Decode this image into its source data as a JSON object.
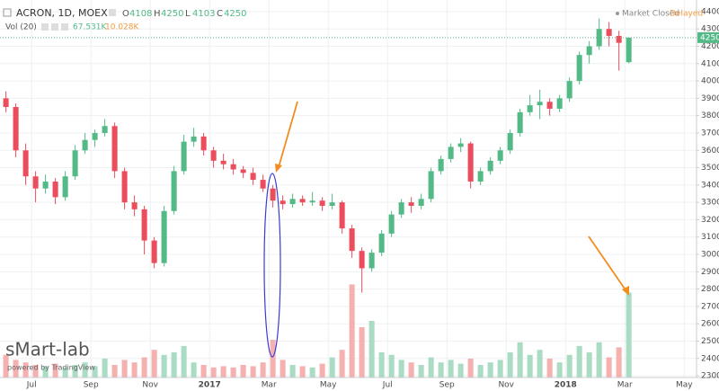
{
  "chart_data": {
    "type": "candlestick",
    "symbol": "ACRON, 1D, MOEX",
    "ohlc_letters": [
      "O",
      "H",
      "L",
      "C"
    ],
    "volume_title": "Vol (20)",
    "volume_ma_label": "10.028K",
    "status": "Market Closed",
    "delay": "Delayed",
    "watermark": "sMart-lab",
    "powered_by": "powered by TradingView",
    "up_color": "#53b987",
    "down_color": "#eb4d5c",
    "volume_up_color": "#a9dcc3",
    "volume_down_color": "#f5b0b0",
    "open": [
      3900,
      3850,
      3600,
      3450,
      3380,
      3420,
      3330,
      3450,
      3600,
      3660,
      3700,
      3740,
      3480,
      3300,
      3260,
      3080,
      2950,
      3250,
      3480,
      3650,
      3680,
      3600,
      3540,
      3520,
      3490,
      3470,
      3430,
      3380,
      3310,
      3290,
      3320,
      3300,
      3310,
      3280,
      3300,
      3150,
      3020,
      2920,
      3010,
      3120,
      3230,
      3300,
      3280,
      3320,
      3480,
      3550,
      3620,
      3640,
      3420,
      3480,
      3540,
      3600,
      3700,
      3820,
      3860,
      3880,
      3840,
      3900,
      4000,
      4150,
      4200,
      4300,
      4260,
      4108
    ],
    "high": [
      3940,
      3870,
      3640,
      3480,
      3460,
      3440,
      3480,
      3630,
      3700,
      3720,
      3780,
      3760,
      3500,
      3340,
      3280,
      3100,
      3280,
      3510,
      3690,
      3730,
      3700,
      3620,
      3580,
      3550,
      3510,
      3500,
      3460,
      3400,
      3340,
      3350,
      3340,
      3360,
      3330,
      3350,
      3310,
      3170,
      3040,
      3030,
      3140,
      3250,
      3320,
      3330,
      3350,
      3500,
      3570,
      3640,
      3670,
      3650,
      3500,
      3560,
      3620,
      3720,
      3840,
      3920,
      3950,
      3900,
      3920,
      4020,
      4170,
      4230,
      4360,
      4340,
      4290,
      4250
    ],
    "low": [
      3820,
      3560,
      3400,
      3300,
      3350,
      3290,
      3310,
      3430,
      3580,
      3620,
      3680,
      3440,
      3260,
      3220,
      3000,
      2920,
      2930,
      3230,
      3460,
      3620,
      3570,
      3500,
      3490,
      3460,
      3440,
      3400,
      3360,
      3270,
      3260,
      3270,
      3280,
      3280,
      3250,
      3260,
      3120,
      2980,
      2780,
      2900,
      2990,
      3100,
      3210,
      3240,
      3260,
      3300,
      3460,
      3530,
      3590,
      3380,
      3400,
      3460,
      3520,
      3580,
      3680,
      3800,
      3780,
      3800,
      3820,
      3880,
      3980,
      4100,
      4180,
      4200,
      4060,
      4103
    ],
    "close": [
      3850,
      3600,
      3450,
      3380,
      3420,
      3330,
      3450,
      3600,
      3660,
      3700,
      3740,
      3480,
      3300,
      3260,
      3080,
      2950,
      3250,
      3480,
      3650,
      3680,
      3600,
      3540,
      3520,
      3490,
      3470,
      3430,
      3380,
      3310,
      3290,
      3320,
      3300,
      3310,
      3280,
      3300,
      3150,
      3020,
      2920,
      3010,
      3120,
      3230,
      3300,
      3280,
      3320,
      3480,
      3550,
      3620,
      3640,
      3420,
      3480,
      3540,
      3600,
      3700,
      3820,
      3860,
      3880,
      3840,
      3900,
      4000,
      4150,
      4200,
      4300,
      4260,
      4220,
      4250
    ],
    "volume": [
      18,
      14,
      12,
      10,
      9,
      11,
      8,
      10,
      12,
      9,
      15,
      10,
      14,
      12,
      16,
      22,
      18,
      20,
      25,
      12,
      10,
      8,
      9,
      8,
      10,
      9,
      12,
      30,
      14,
      10,
      9,
      8,
      11,
      16,
      22,
      74,
      40,
      45,
      20,
      18,
      14,
      12,
      10,
      16,
      12,
      14,
      11,
      15,
      10,
      12,
      14,
      20,
      28,
      18,
      22,
      15,
      12,
      18,
      25,
      20,
      28,
      16,
      24,
      67.531
    ],
    "volume_value_labels": [
      null,
      null,
      null,
      null,
      null,
      null,
      null,
      null,
      null,
      null,
      null,
      null,
      null,
      null,
      null,
      null,
      null,
      null,
      null,
      null,
      null,
      null,
      null,
      null,
      null,
      null,
      null,
      null,
      null,
      null,
      null,
      null,
      null,
      null,
      null,
      null,
      null,
      null,
      null,
      null,
      null,
      null,
      null,
      null,
      null,
      null,
      null,
      null,
      null,
      null,
      null,
      null,
      null,
      null,
      null,
      null,
      null,
      null,
      null,
      null,
      null,
      null,
      null,
      "67.531K"
    ],
    "vlim": [
      0,
      300
    ],
    "xlim": [
      -0.6,
      69.85
    ],
    "xticks": [
      {
        "value": 2.6,
        "label": "Jul"
      },
      {
        "value": 8.6,
        "label": "Sep"
      },
      {
        "value": 14.6,
        "label": "Nov"
      },
      {
        "value": 20.6,
        "label": "2017"
      },
      {
        "value": 26.6,
        "label": "Mar"
      },
      {
        "value": 32.6,
        "label": "May"
      },
      {
        "value": 38.6,
        "label": "Jul"
      },
      {
        "value": 44.6,
        "label": "Sep"
      },
      {
        "value": 50.6,
        "label": "Nov"
      },
      {
        "value": 56.6,
        "label": "2018"
      },
      {
        "value": 62.6,
        "label": "Mar"
      },
      {
        "value": 68.6,
        "label": "May"
      }
    ],
    "ylim": [
      2290,
      4467
    ],
    "yticks": [
      2300,
      2400,
      2500,
      2600,
      2700,
      2800,
      2900,
      3000,
      3100,
      3200,
      3300,
      3400,
      3500,
      3600,
      3700,
      3800,
      3900,
      4000,
      4100,
      4200,
      4300,
      4400
    ],
    "grid": true
  }
}
